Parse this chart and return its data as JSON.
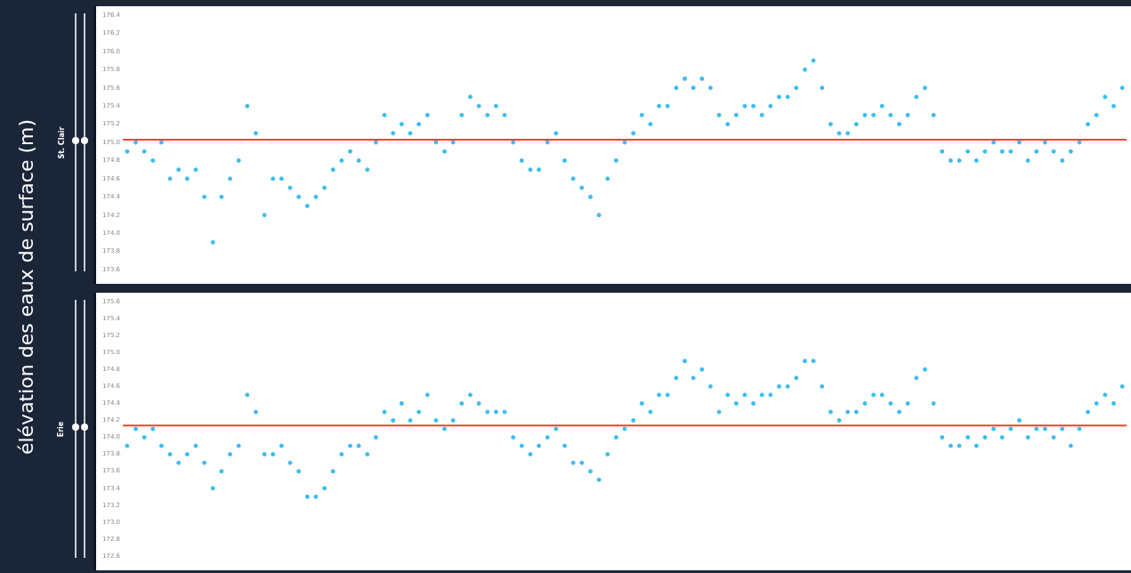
{
  "chart_data": [
    {
      "type": "scatter",
      "title": "St. Clair",
      "ylabel": "élévation des eaux de surface (m)",
      "marker": "circle",
      "tick_labels": "y",
      "categories": [
        null,
        null,
        null,
        null,
        null,
        null,
        null,
        null,
        null,
        null,
        null,
        null,
        null,
        null,
        null,
        null,
        null,
        null,
        null,
        null,
        null,
        null,
        null,
        null,
        null,
        null,
        null,
        null,
        null,
        null,
        null,
        null,
        null,
        null,
        null,
        null,
        null,
        null,
        null,
        null,
        null,
        null,
        null,
        null,
        null,
        null,
        null,
        null,
        null,
        null,
        null,
        null,
        null,
        null,
        null,
        null,
        null,
        null,
        null,
        null,
        null,
        null,
        null,
        null,
        null,
        null,
        null,
        null,
        null,
        null,
        null,
        null,
        null,
        null,
        null,
        null,
        null,
        null,
        null,
        null,
        null,
        null,
        null,
        null,
        null,
        null,
        null,
        null,
        null,
        null,
        null,
        null,
        null,
        null,
        null,
        null,
        null,
        null,
        null,
        null,
        null,
        null,
        null,
        null,
        null,
        null,
        null,
        null,
        null,
        null,
        null,
        null,
        null,
        null,
        null,
        null,
        null
      ],
      "ylim": [
        173.6,
        176.4
      ],
      "yticks": [
        173.6,
        173.8,
        {
          "value": 174,
          "label": "174.0"
        },
        174.2,
        174.4,
        174.6,
        174.8,
        {
          "value": 175,
          "label": "175.0"
        },
        175.2,
        175.4,
        175.6,
        175.8,
        {
          "value": 176,
          "label": "176.0"
        },
        176.2,
        176.4
      ],
      "ref_lines": [
        {
          "axis": "y",
          "value": 175.03,
          "color": "#ee4433"
        }
      ],
      "series": [
        {
          "color": "#3dbcf0",
          "values": [
            174.9,
            175.0,
            174.9,
            174.8,
            175.0,
            174.6,
            174.7,
            174.6,
            174.7,
            174.4,
            173.9,
            174.4,
            174.6,
            174.8,
            175.4,
            175.1,
            174.2,
            174.6,
            174.6,
            174.5,
            174.4,
            174.3,
            174.4,
            174.5,
            174.7,
            174.8,
            174.9,
            174.8,
            174.7,
            175.0,
            175.3,
            175.1,
            175.2,
            175.1,
            175.2,
            175.3,
            175.0,
            174.9,
            175.0,
            175.3,
            175.5,
            175.4,
            175.3,
            175.4,
            175.3,
            175.0,
            174.8,
            174.7,
            174.7,
            175.0,
            175.1,
            174.8,
            174.6,
            174.5,
            174.4,
            174.2,
            174.6,
            174.8,
            175.0,
            175.1,
            175.3,
            175.2,
            175.4,
            175.4,
            175.6,
            175.7,
            175.6,
            175.7,
            175.6,
            175.3,
            175.2,
            175.3,
            175.4,
            175.4,
            175.3,
            175.4,
            175.5,
            175.5,
            175.6,
            175.8,
            175.9,
            175.6,
            175.2,
            175.1,
            175.1,
            175.2,
            175.3,
            175.3,
            175.4,
            175.3,
            175.2,
            175.3,
            175.5,
            175.6,
            175.3,
            174.9,
            174.8,
            174.8,
            174.9,
            174.8,
            174.9,
            175.0,
            174.9,
            174.9,
            175.0,
            174.8,
            174.9,
            175.0,
            174.9,
            174.8,
            174.9,
            175.0,
            175.2,
            175.3,
            175.5,
            175.4,
            175.6
          ]
        }
      ]
    },
    {
      "type": "scatter",
      "title": "Erie",
      "marker": "circle",
      "tick_labels": "y",
      "categories": [
        null,
        null,
        null,
        null,
        null,
        null,
        null,
        null,
        null,
        null,
        null,
        null,
        null,
        null,
        null,
        null,
        null,
        null,
        null,
        null,
        null,
        null,
        null,
        null,
        null,
        null,
        null,
        null,
        null,
        null,
        null,
        null,
        null,
        null,
        null,
        null,
        null,
        null,
        null,
        null,
        null,
        null,
        null,
        null,
        null,
        null,
        null,
        null,
        null,
        null,
        null,
        null,
        null,
        null,
        null,
        null,
        null,
        null,
        null,
        null,
        null,
        null,
        null,
        null,
        null,
        null,
        null,
        null,
        null,
        null,
        null,
        null,
        null,
        null,
        null,
        null,
        null,
        null,
        null,
        null,
        null,
        null,
        null,
        null,
        null,
        null,
        null,
        null,
        null,
        null,
        null,
        null,
        null,
        null,
        null,
        null,
        null,
        null,
        null,
        null,
        null,
        null,
        null,
        null,
        null,
        null,
        null,
        null,
        null,
        null,
        null,
        null,
        null,
        null,
        null,
        null,
        null
      ],
      "ylim": [
        172.6,
        175.6
      ],
      "yticks": [
        172.6,
        172.8,
        {
          "value": 173,
          "label": "173.0"
        },
        173.2,
        173.4,
        173.6,
        173.8,
        {
          "value": 174,
          "label": "174.0"
        },
        174.2,
        174.4,
        174.6,
        174.8,
        {
          "value": 175,
          "label": "175.0"
        },
        175.2,
        175.4,
        175.6
      ],
      "ref_lines": [
        {
          "axis": "y",
          "value": 174.14,
          "color": "#ee4433"
        }
      ],
      "series": [
        {
          "color": "#3dbcf0",
          "values": [
            173.9,
            174.1,
            174.0,
            174.1,
            173.9,
            173.8,
            173.7,
            173.8,
            173.9,
            173.7,
            173.4,
            173.6,
            173.8,
            173.9,
            174.5,
            174.3,
            173.8,
            173.8,
            173.9,
            173.7,
            173.6,
            173.3,
            173.3,
            173.4,
            173.6,
            173.8,
            173.9,
            173.9,
            173.8,
            174.0,
            174.3,
            174.2,
            174.4,
            174.2,
            174.3,
            174.5,
            174.2,
            174.1,
            174.2,
            174.4,
            174.5,
            174.4,
            174.3,
            174.3,
            174.3,
            174.0,
            173.9,
            173.8,
            173.9,
            174.0,
            174.1,
            173.9,
            173.7,
            173.7,
            173.6,
            173.5,
            173.8,
            174.0,
            174.1,
            174.2,
            174.4,
            174.3,
            174.5,
            174.5,
            174.7,
            174.9,
            174.7,
            174.8,
            174.6,
            174.3,
            174.5,
            174.4,
            174.5,
            174.4,
            174.5,
            174.5,
            174.6,
            174.6,
            174.7,
            174.9,
            174.9,
            174.6,
            174.3,
            174.2,
            174.3,
            174.3,
            174.4,
            174.5,
            174.5,
            174.4,
            174.3,
            174.4,
            174.7,
            174.8,
            174.4,
            174.0,
            173.9,
            173.9,
            174.0,
            173.9,
            174.0,
            174.1,
            174.0,
            174.1,
            174.2,
            174.0,
            174.1,
            174.1,
            174.0,
            174.1,
            173.9,
            174.1,
            174.3,
            174.4,
            174.5,
            174.4,
            174.6
          ]
        }
      ]
    }
  ]
}
